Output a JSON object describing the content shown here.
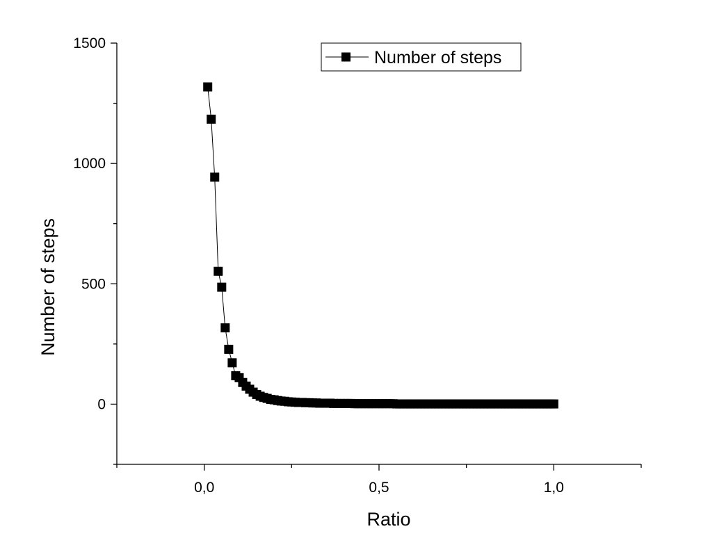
{
  "chart_data": {
    "type": "line",
    "xlabel": "Ratio",
    "ylabel": "Number of steps",
    "xlim": [
      -0.25,
      1.25
    ],
    "ylim": [
      -250,
      1500
    ],
    "xticks": [
      0.0,
      0.5,
      1.0
    ],
    "xtick_labels": [
      "0,0",
      "0,5",
      "1,0"
    ],
    "yticks": [
      0,
      500,
      1000,
      1500
    ],
    "ytick_labels": [
      "0",
      "500",
      "1000",
      "1500"
    ],
    "grid": false,
    "legend": {
      "position": "top-right",
      "entries": [
        "Number of steps"
      ]
    },
    "series": [
      {
        "name": "Number of steps",
        "marker": "square",
        "color": "#000000",
        "x": [
          0.01,
          0.02,
          0.03,
          0.04,
          0.05,
          0.06,
          0.07,
          0.08,
          0.09,
          0.1,
          0.11,
          0.12,
          0.13,
          0.14,
          0.15,
          0.16,
          0.17,
          0.18,
          0.19,
          0.2,
          0.21,
          0.22,
          0.23,
          0.24,
          0.25,
          0.26,
          0.27,
          0.28,
          0.29,
          0.3,
          0.31,
          0.32,
          0.33,
          0.34,
          0.35,
          0.36,
          0.37,
          0.38,
          0.39,
          0.4,
          0.41,
          0.42,
          0.43,
          0.44,
          0.45,
          0.46,
          0.47,
          0.48,
          0.49,
          0.5,
          0.51,
          0.52,
          0.53,
          0.54,
          0.55,
          0.56,
          0.57,
          0.58,
          0.59,
          0.6,
          0.61,
          0.62,
          0.63,
          0.64,
          0.65,
          0.66,
          0.67,
          0.68,
          0.69,
          0.7,
          0.71,
          0.72,
          0.73,
          0.74,
          0.75,
          0.76,
          0.77,
          0.78,
          0.79,
          0.8,
          0.81,
          0.82,
          0.83,
          0.84,
          0.85,
          0.86,
          0.87,
          0.88,
          0.89,
          0.9,
          0.91,
          0.92,
          0.93,
          0.94,
          0.95,
          0.96,
          0.97,
          0.98,
          0.99,
          1.0
        ],
        "values": [
          1318,
          1184,
          943,
          552,
          486,
          317,
          228,
          172,
          118,
          110,
          90,
          75,
          62,
          50,
          40,
          33,
          28,
          24,
          20,
          18,
          15,
          13,
          12,
          10,
          9,
          8,
          7,
          7,
          6,
          6,
          5,
          5,
          4,
          4,
          4,
          4,
          3,
          3,
          3,
          3,
          3,
          3,
          2,
          2,
          2,
          2,
          2,
          2,
          2,
          2,
          2,
          2,
          2,
          2,
          1,
          1,
          1,
          1,
          1,
          1,
          1,
          1,
          1,
          1,
          1,
          1,
          1,
          1,
          1,
          1,
          1,
          1,
          1,
          1,
          1,
          1,
          1,
          1,
          1,
          1,
          1,
          1,
          1,
          1,
          1,
          1,
          1,
          1,
          1,
          1,
          1,
          1,
          1,
          1,
          1,
          1,
          1,
          1,
          1,
          1
        ]
      }
    ]
  }
}
